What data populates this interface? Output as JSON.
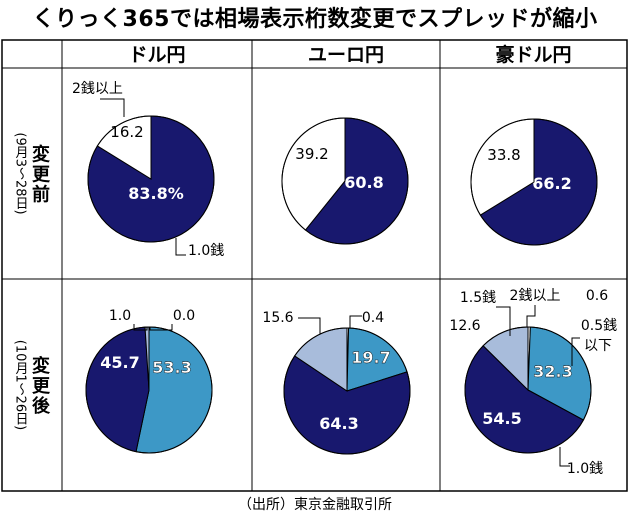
{
  "title": "くりっく365では相場表示桁数変更でスプレッドが縮小",
  "source": "（出所）東京金融取引所",
  "colors": {
    "navy": "#18186e",
    "blue": "#3d98c6",
    "light": "#a8bcdb",
    "white": "#ffffff",
    "stroke": "#000000"
  },
  "chart_data": {
    "type": "pie",
    "columns": [
      "ドル円",
      "ユーロ円",
      "豪ドル円"
    ],
    "rows": [
      {
        "label": "変更前",
        "period": "(9月3〜28日)",
        "key": "before"
      },
      {
        "label": "変更後",
        "period": "(10月1〜26日)",
        "key": "after"
      }
    ],
    "pies": [
      {
        "column": "ドル円",
        "row": "変更前",
        "slices": [
          {
            "category": "1.0銭",
            "value": 83.8,
            "label": "83.8%",
            "color": "navy"
          },
          {
            "category": "2銭以上",
            "value": 16.2,
            "label": "16.2",
            "color": "white"
          }
        ],
        "callouts": [
          "2銭以上",
          "1.0銭"
        ]
      },
      {
        "column": "ユーロ円",
        "row": "変更前",
        "slices": [
          {
            "category": "1.0銭",
            "value": 60.8,
            "label": "60.8",
            "color": "navy"
          },
          {
            "category": "2銭以上",
            "value": 39.2,
            "label": "39.2",
            "color": "white"
          }
        ],
        "callouts": []
      },
      {
        "column": "豪ドル円",
        "row": "変更前",
        "slices": [
          {
            "category": "1.0銭",
            "value": 66.2,
            "label": "66.2",
            "color": "navy"
          },
          {
            "category": "2銭以上",
            "value": 33.8,
            "label": "33.8",
            "color": "white"
          }
        ],
        "callouts": []
      },
      {
        "column": "ドル円",
        "row": "変更後",
        "slices": [
          {
            "category": "0.0",
            "value": 0.0,
            "label": "0.0",
            "color": "white"
          },
          {
            "category": "0.5銭以下",
            "value": 53.3,
            "label": "53.3",
            "color": "blue"
          },
          {
            "category": "1.0銭",
            "value": 45.7,
            "label": "45.7",
            "color": "navy"
          },
          {
            "category": "1.5銭",
            "value": 1.0,
            "label": "1.0",
            "color": "light"
          }
        ],
        "callouts": [
          "1.0",
          "0.0"
        ]
      },
      {
        "column": "ユーロ円",
        "row": "変更後",
        "slices": [
          {
            "category": "2銭以上",
            "value": 0.4,
            "label": "0.4",
            "color": "white"
          },
          {
            "category": "0.5銭以下",
            "value": 19.7,
            "label": "19.7",
            "color": "blue"
          },
          {
            "category": "1.0銭",
            "value": 64.3,
            "label": "64.3",
            "color": "navy"
          },
          {
            "category": "1.5銭",
            "value": 15.6,
            "label": "15.6",
            "color": "light"
          }
        ],
        "callouts": [
          "15.6",
          "0.4"
        ]
      },
      {
        "column": "豪ドル円",
        "row": "変更後",
        "slices": [
          {
            "category": "2銭以上",
            "value": 0.6,
            "label": "0.6",
            "color": "white"
          },
          {
            "category": "0.5銭以下",
            "value": 32.3,
            "label": "32.3",
            "color": "blue"
          },
          {
            "category": "1.0銭",
            "value": 54.5,
            "label": "54.5",
            "color": "navy"
          },
          {
            "category": "1.5銭",
            "value": 12.6,
            "label": "12.6",
            "color": "light"
          }
        ],
        "callouts": [
          "1.5銭",
          "12.6",
          "2銭以上",
          "0.6",
          "0.5銭",
          "以下",
          "1.0銭"
        ]
      }
    ]
  }
}
